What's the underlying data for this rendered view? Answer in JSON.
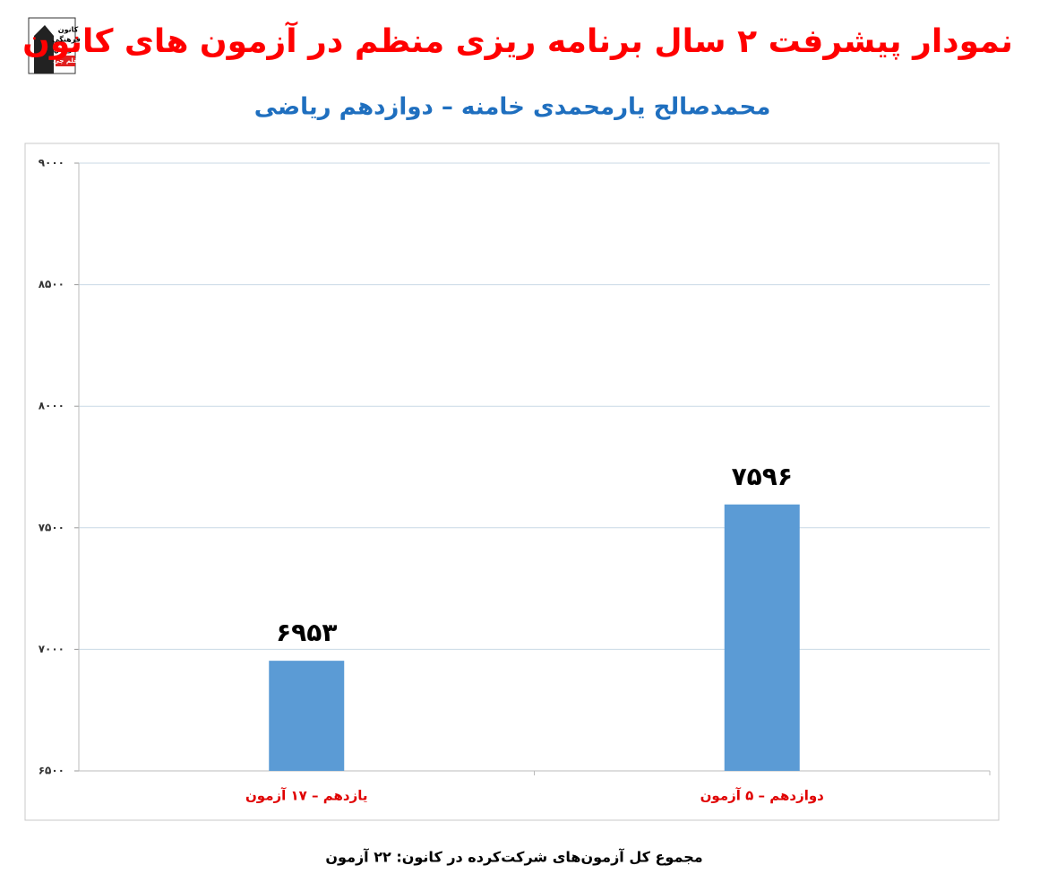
{
  "logo": {
    "lines": [
      "کانون",
      "فرهنگی",
      "آموزش",
      "قلم چی"
    ]
  },
  "chart_data": {
    "type": "bar",
    "title": "نمودار پیشرفت ۲ سال برنامه ریزی منظم در آزمون های کانون",
    "subtitle": "محمدصالح یارمحمدی خامنه – دوازدهم ریاضی",
    "footnote": "مجموع کل آزمون‌های شرکت‌کرده در کانون:  ۲۲ آزمون",
    "categories": [
      "یازدهم – ۱۷ آزمون",
      "دوازدهم – ۵ آزمون"
    ],
    "values": [
      6953,
      7596
    ],
    "value_labels": [
      "۶۹۵۳",
      "۷۵۹۶"
    ],
    "color": "#5b9bd5",
    "ylim": [
      6500,
      9000
    ],
    "yticks": [
      {
        "value": 6500,
        "label": "۶۵۰۰"
      },
      {
        "value": 7000,
        "label": "۷۰۰۰"
      },
      {
        "value": 7500,
        "label": "۷۵۰۰"
      },
      {
        "value": 8000,
        "label": "۸۰۰۰"
      },
      {
        "value": 8500,
        "label": "۸۵۰۰"
      },
      {
        "value": 9000,
        "label": "۹۰۰۰"
      }
    ],
    "grid": true
  }
}
